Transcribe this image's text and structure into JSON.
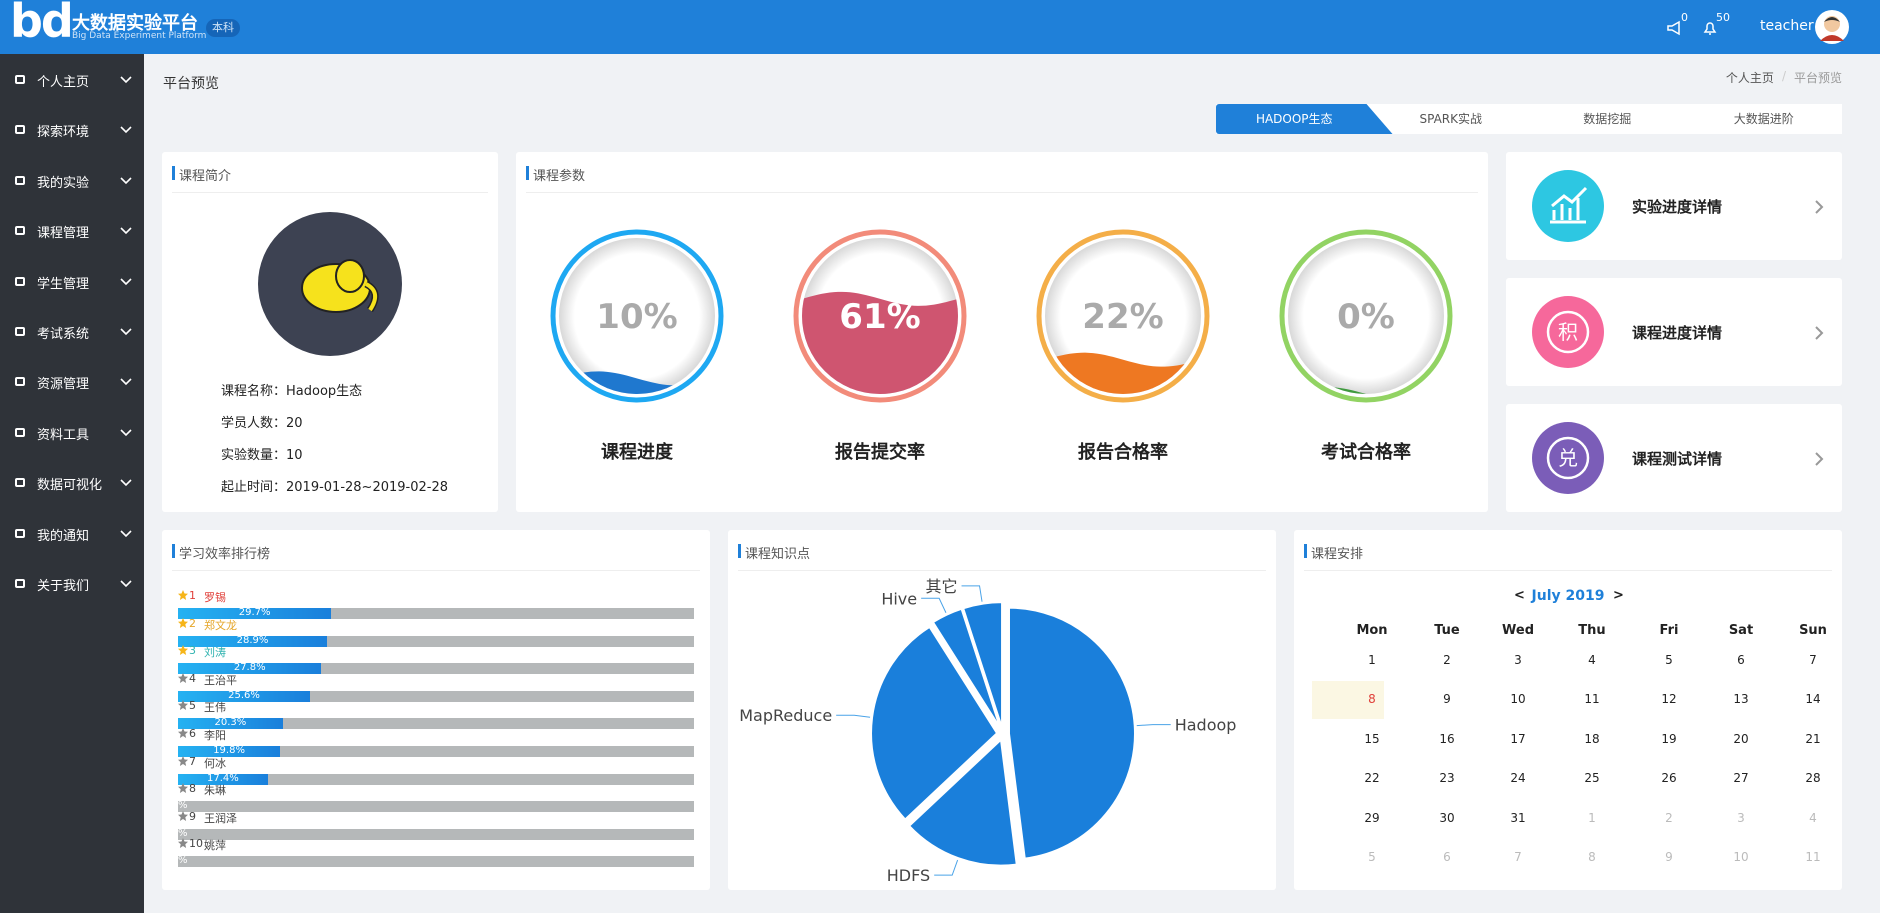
{
  "header": {
    "logo": "bd",
    "title": "大数据实验平台",
    "subtitle": "Big Data Experiment Platform",
    "badge": "本科",
    "announcements": 0,
    "messages": 50,
    "user": "teacher"
  },
  "menu": [
    "个人主页",
    "探索环境",
    "我的实验",
    "课程管理",
    "学生管理",
    "考试系统",
    "资源管理",
    "资料工具",
    "数据可视化",
    "我的通知",
    "关于我们"
  ],
  "page_title": "平台预览",
  "breadcrumb": {
    "items": [
      "个人主页",
      "平台预览"
    ],
    "separator": "/"
  },
  "tabs": [
    "HADOOP生态",
    "SPARK实战",
    "数据挖掘",
    "大数据进阶"
  ],
  "intro": {
    "title": "课程简介",
    "lines": [
      "课程名称：Hadoop生态",
      "学员人数：20",
      "实验数量：10",
      "起止时间：2019-01-28~2019-02-28"
    ]
  },
  "params": {
    "title": "课程参数",
    "gauges": [
      {
        "label": "课程进度",
        "value": 10,
        "value_label": "10%",
        "color": "#1ea8f2",
        "wave_color": "#1f78cf"
      },
      {
        "label": "报告提交率",
        "value": 61,
        "value_label": "61%",
        "color": "#f28b7a",
        "wave_color": "#cf5570"
      },
      {
        "label": "报告合格率",
        "value": 22,
        "value_label": "22%",
        "color": "#f4ae48",
        "wave_color": "#ee7822"
      },
      {
        "label": "考试合格率",
        "value": 0,
        "value_label": "0%",
        "color": "#92d363",
        "wave_color": "#3f9a3e"
      }
    ]
  },
  "links": [
    {
      "label": "实验进度详情",
      "color": "#2dc7e2"
    },
    {
      "label": "课程进度详情",
      "icon": "积",
      "color": "#f6689b"
    },
    {
      "label": "课程测试详情",
      "icon": "兑",
      "color": "#7b5db8"
    }
  ],
  "ranking": {
    "title": "学习效率排行榜",
    "ranks": [
      1,
      2,
      3,
      4,
      5,
      6,
      7,
      8,
      9,
      10
    ],
    "names": [
      "罗锡",
      "郑文龙",
      "刘涛",
      "王治平",
      "王伟",
      "李阳",
      "何冰",
      "朱琳",
      "王润泽",
      "姚萍"
    ],
    "values": [
      29.7,
      28.9,
      27.8,
      25.6,
      20.3,
      19.8,
      17.4,
      null,
      null,
      null
    ],
    "value_labels": [
      "29.7%",
      "28.9%",
      "27.8%",
      "25.6%",
      "20.3%",
      "19.8%",
      "17.4%",
      "%",
      "%",
      "%"
    ],
    "xlim": [
      0,
      100
    ]
  },
  "chart_data": {
    "type": "pie",
    "title": "课程知识点",
    "categories": [
      "Hadoop",
      "HDFS",
      "MapReduce",
      "Hive",
      "其它"
    ],
    "values": [
      48,
      15,
      28,
      4,
      5
    ],
    "color": "#1a7fdb"
  },
  "calendar": {
    "title": "课程安排",
    "prev": "<",
    "month": "July 2019",
    "next": ">",
    "weekdays": [
      "Mon",
      "Tue",
      "Wed",
      "Thu",
      "Fri",
      "Sat",
      "Sun"
    ],
    "weeks": [
      [
        1,
        2,
        3,
        4,
        5,
        6,
        7
      ],
      [
        8,
        9,
        10,
        11,
        12,
        13,
        14
      ],
      [
        15,
        16,
        17,
        18,
        19,
        20,
        21
      ],
      [
        22,
        23,
        24,
        25,
        26,
        27,
        28
      ],
      [
        29,
        30,
        31,
        1,
        2,
        3,
        4
      ],
      [
        5,
        6,
        7,
        8,
        9,
        10,
        11
      ]
    ],
    "highlighted_day": 8
  }
}
